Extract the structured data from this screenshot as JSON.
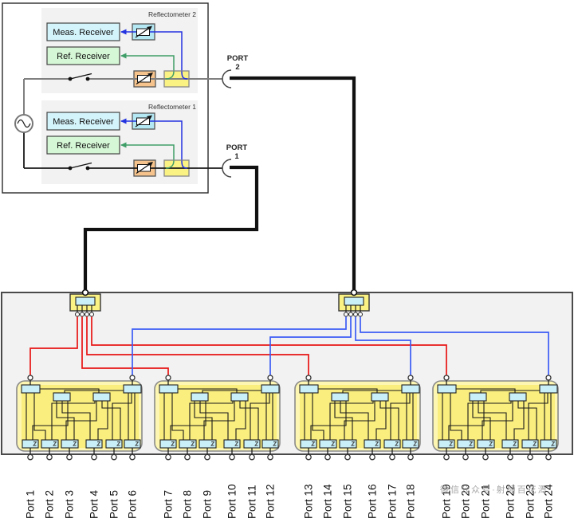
{
  "vna": {
    "reflectometer_2": {
      "title": "Reflectometer 2",
      "meas_receiver": "Meas. Receiver",
      "ref_receiver": "Ref. Receiver"
    },
    "reflectometer_1": {
      "title": "Reflectometer 1",
      "meas_receiver": "Meas. Receiver",
      "ref_receiver": "Ref. Receiver"
    },
    "port_2": {
      "label": "PORT",
      "number": "2"
    },
    "port_1": {
      "label": "PORT",
      "number": "1"
    }
  },
  "matrix": {
    "output_ports": [
      "Port 1",
      "Port 2",
      "Port 3",
      "Port 4",
      "Port 5",
      "Port 6",
      "Port 7",
      "Port 8",
      "Port 9",
      "Port 10",
      "Port 11",
      "Port 12",
      "Port 13",
      "Port 14",
      "Port 15",
      "Port 16",
      "Port 17",
      "Port 18",
      "Port 19",
      "Port 20",
      "Port 21",
      "Port 22",
      "Port 23",
      "Port 24"
    ]
  },
  "watermark": "微信公众号·射频百花潭",
  "colors": {
    "red_wire": "#e81414",
    "blue_wire": "#3c5cf5",
    "green_signal": "#3f9e68",
    "blue_signal": "#2433e0",
    "main_line_gray": "#808080",
    "main_line_black": "#1a1a1a",
    "cyan_block": "#c9eff8",
    "receiver_cyan": "#d4f4fb",
    "receiver_green": "#d6f7d6",
    "orange_block": "#f6c38d",
    "coupler_yellow": "#fbf284",
    "module_yellow_outer": "#fcf6b2",
    "module_yellow_inner": "#faee7e",
    "panel_gray": "#f2f2f2"
  }
}
